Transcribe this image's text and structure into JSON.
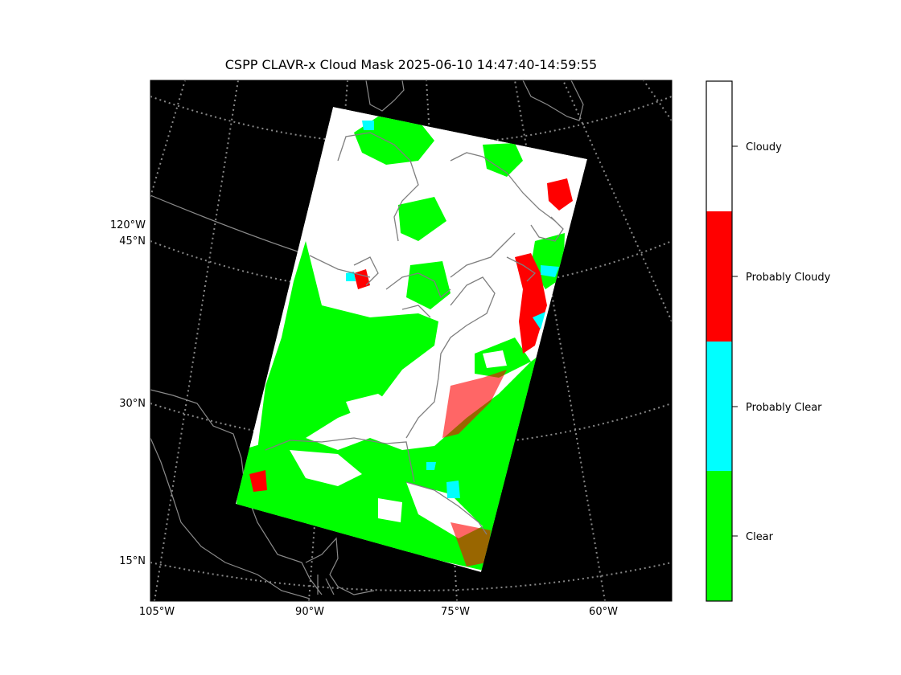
{
  "title": "CSPP CLAVR-x Cloud Mask 2025-06-10 14:47:40-14:59:55",
  "map": {
    "longitude_labels": [
      "105°W",
      "90°W",
      "75°W",
      "60°W"
    ],
    "latitude_labels": [
      "120°W",
      "45°N",
      "30°N",
      "15°N"
    ],
    "gridlines": "dotted",
    "background_color": "#000000",
    "coastline_color": "#7f7f7f"
  },
  "colorbar": {
    "categories": [
      {
        "label": "Cloudy",
        "color": "#ffffff"
      },
      {
        "label": "Probably Cloudy",
        "color": "#ff0000"
      },
      {
        "label": "Probably Clear",
        "color": "#00ffff"
      },
      {
        "label": "Clear",
        "color": "#00ff00"
      }
    ]
  }
}
